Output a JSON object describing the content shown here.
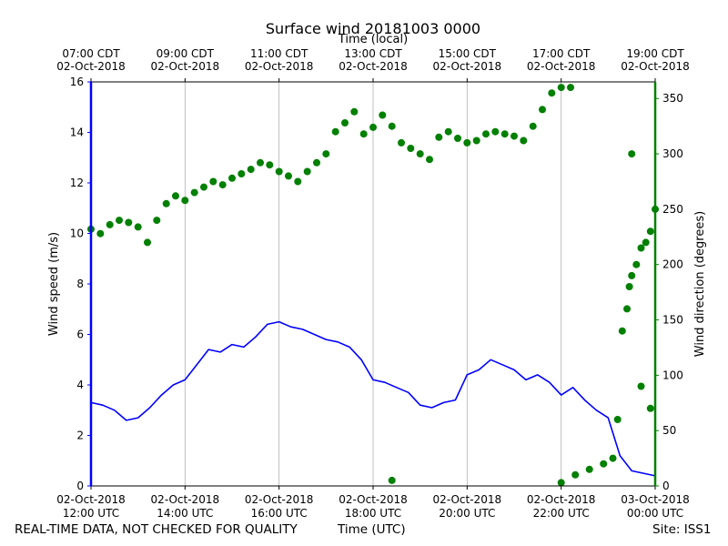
{
  "chart_data": {
    "type": "line",
    "title": "Surface wind 20181003 0000",
    "top_axis_label": "Time (local)",
    "xlabel": "Time (UTC)",
    "ylabel_left": "Wind speed (m/s)",
    "ylabel_right": "Wind direction (degrees)",
    "left_color": "#0000ff",
    "right_color": "#008000",
    "x_unit": "hours since 02-Oct-2018 12:00 UTC",
    "xlim": [
      0,
      12
    ],
    "ylim_left": [
      0,
      16
    ],
    "ylim_right": [
      0,
      365
    ],
    "bottom_ticks": [
      {
        "x": 0,
        "line1": "02-Oct-2018",
        "line2": "12:00 UTC"
      },
      {
        "x": 2,
        "line1": "02-Oct-2018",
        "line2": "14:00 UTC"
      },
      {
        "x": 4,
        "line1": "02-Oct-2018",
        "line2": "16:00 UTC"
      },
      {
        "x": 6,
        "line1": "02-Oct-2018",
        "line2": "18:00 UTC"
      },
      {
        "x": 8,
        "line1": "02-Oct-2018",
        "line2": "20:00 UTC"
      },
      {
        "x": 10,
        "line1": "02-Oct-2018",
        "line2": "22:00 UTC"
      },
      {
        "x": 12,
        "line1": "03-Oct-2018",
        "line2": "00:00 UTC"
      }
    ],
    "top_ticks": [
      {
        "x": 0,
        "line1": "07:00 CDT",
        "line2": "02-Oct-2018"
      },
      {
        "x": 2,
        "line1": "09:00 CDT",
        "line2": "02-Oct-2018"
      },
      {
        "x": 4,
        "line1": "11:00 CDT",
        "line2": "02-Oct-2018"
      },
      {
        "x": 6,
        "line1": "13:00 CDT",
        "line2": "02-Oct-2018"
      },
      {
        "x": 8,
        "line1": "15:00 CDT",
        "line2": "02-Oct-2018"
      },
      {
        "x": 10,
        "line1": "17:00 CDT",
        "line2": "02-Oct-2018"
      },
      {
        "x": 12,
        "line1": "19:00 CDT",
        "line2": "02-Oct-2018"
      }
    ],
    "left_ticks": [
      0,
      2,
      4,
      6,
      8,
      10,
      12,
      14,
      16
    ],
    "right_ticks": [
      0,
      50,
      100,
      150,
      200,
      250,
      300,
      350
    ],
    "series": [
      {
        "name": "Wind speed (m/s)",
        "axis": "left",
        "style": "line",
        "x": [
          0,
          0.25,
          0.5,
          0.75,
          1.0,
          1.25,
          1.5,
          1.75,
          2.0,
          2.25,
          2.5,
          2.75,
          3.0,
          3.25,
          3.5,
          3.75,
          4.0,
          4.25,
          4.5,
          4.75,
          5.0,
          5.25,
          5.5,
          5.75,
          6.0,
          6.25,
          6.5,
          6.75,
          7.0,
          7.25,
          7.5,
          7.75,
          8.0,
          8.25,
          8.5,
          8.75,
          9.0,
          9.25,
          9.5,
          9.75,
          10.0,
          10.25,
          10.5,
          10.75,
          11.0,
          11.25,
          11.5,
          11.75,
          12.0
        ],
        "values": [
          3.3,
          3.2,
          3.0,
          2.6,
          2.7,
          3.1,
          3.6,
          4.0,
          4.2,
          4.8,
          5.4,
          5.3,
          5.6,
          5.5,
          5.9,
          6.4,
          6.5,
          6.3,
          6.2,
          6.0,
          5.8,
          5.7,
          5.5,
          5.0,
          4.2,
          4.1,
          3.9,
          3.7,
          3.2,
          3.1,
          3.3,
          3.4,
          4.4,
          4.6,
          5.0,
          4.8,
          4.6,
          4.2,
          4.4,
          4.1,
          3.6,
          3.9,
          3.4,
          3.0,
          2.7,
          1.2,
          0.6,
          0.5,
          0.4
        ]
      },
      {
        "name": "Wind direction (degrees)",
        "axis": "right",
        "style": "scatter",
        "x": [
          0,
          0.2,
          0.4,
          0.6,
          0.8,
          1.0,
          1.2,
          1.4,
          1.6,
          1.8,
          2.0,
          2.2,
          2.4,
          2.6,
          2.8,
          3.0,
          3.2,
          3.4,
          3.6,
          3.8,
          4.0,
          4.2,
          4.4,
          4.6,
          4.8,
          5.0,
          5.2,
          5.4,
          5.6,
          5.8,
          6.0,
          6.2,
          6.4,
          6.6,
          6.8,
          7.0,
          7.2,
          7.4,
          7.6,
          7.8,
          8.0,
          8.2,
          8.4,
          8.6,
          8.8,
          9.0,
          9.2,
          9.4,
          9.6,
          9.8,
          10.0,
          10.2,
          6.4,
          10.0,
          10.3,
          10.6,
          10.9,
          11.1,
          11.2,
          11.3,
          11.4,
          11.5,
          11.6,
          11.7,
          11.8,
          11.9,
          12.0,
          11.5,
          11.45,
          11.7,
          11.9
        ],
        "values": [
          232,
          228,
          236,
          240,
          238,
          234,
          220,
          240,
          255,
          262,
          258,
          265,
          270,
          275,
          272,
          278,
          282,
          286,
          292,
          290,
          284,
          280,
          275,
          284,
          292,
          300,
          320,
          328,
          338,
          318,
          324,
          335,
          325,
          310,
          305,
          300,
          295,
          315,
          320,
          314,
          310,
          312,
          318,
          320,
          318,
          316,
          312,
          325,
          340,
          355,
          360,
          360,
          5,
          3,
          10,
          15,
          20,
          25,
          60,
          140,
          160,
          190,
          200,
          215,
          220,
          230,
          250,
          300,
          180,
          90,
          70
        ],
        "marker": "circle"
      }
    ]
  },
  "footer": {
    "left_note": "REAL-TIME DATA, NOT CHECKED FOR QUALITY",
    "center_label": "Time (UTC)",
    "site": "Site: ISS1"
  }
}
